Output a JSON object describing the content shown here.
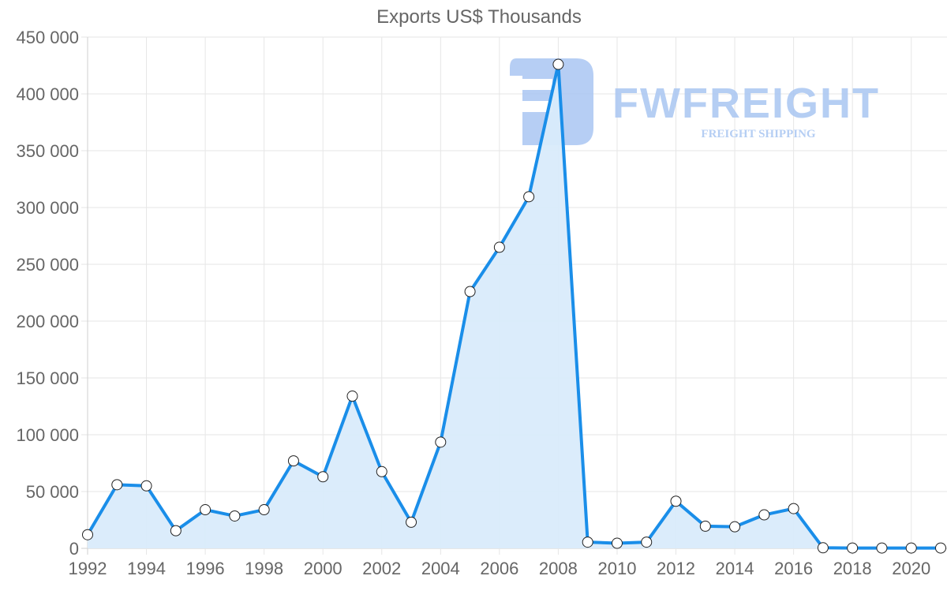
{
  "chart_data": {
    "type": "area",
    "title": "Exports US$ Thousands",
    "xlabel": "",
    "ylabel": "",
    "x": [
      1992,
      1993,
      1994,
      1995,
      1996,
      1997,
      1998,
      1999,
      2000,
      2001,
      2002,
      2003,
      2004,
      2005,
      2006,
      2007,
      2008,
      2009,
      2010,
      2011,
      2012,
      2013,
      2014,
      2015,
      2016,
      2017,
      2018,
      2019,
      2020,
      2021
    ],
    "series": [
      {
        "name": "Exports US$ Thousands",
        "values": [
          12000,
          56000,
          55000,
          15500,
          34000,
          28500,
          34000,
          77000,
          63000,
          134000,
          67500,
          23000,
          93500,
          226000,
          265000,
          309500,
          426000,
          5500,
          4500,
          5500,
          41500,
          19500,
          19000,
          29500,
          35000,
          500,
          300,
          300,
          300,
          300
        ],
        "color": "#1a8ee9",
        "fill": "#d9ebfb"
      }
    ],
    "ylim": [
      0,
      450000
    ],
    "yticks": [
      0,
      50000,
      100000,
      150000,
      200000,
      250000,
      300000,
      350000,
      400000,
      450000
    ],
    "ytick_labels": [
      "0",
      "50 000",
      "100 000",
      "150 000",
      "200 000",
      "250 000",
      "300 000",
      "350 000",
      "400 000",
      "450 000"
    ],
    "xticks": [
      1992,
      1994,
      1996,
      1998,
      2000,
      2002,
      2004,
      2006,
      2008,
      2010,
      2012,
      2014,
      2016,
      2018,
      2020
    ],
    "xtick_labels": [
      "1992",
      "1994",
      "1996",
      "1998",
      "2000",
      "2002",
      "2004",
      "2006",
      "2008",
      "2010",
      "2012",
      "2014",
      "2016",
      "2018",
      "2020"
    ],
    "grid": true,
    "legend": "none",
    "annotations": []
  },
  "watermark": {
    "brand": "FWFREIGHT",
    "tagline": "FREIGHT SHIPPING",
    "color": "#a9c6f2"
  }
}
